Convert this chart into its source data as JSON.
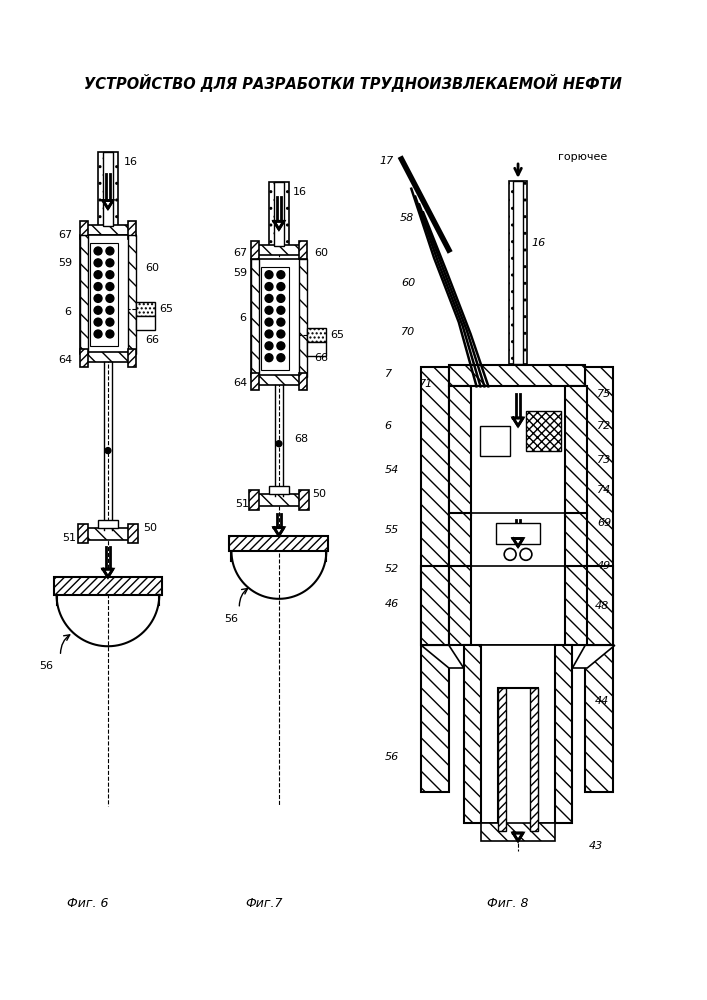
{
  "title": "УСТРОЙСТВО ДЛЯ РАЗРАБОТКИ ТРУДНОИЗВЛЕКАЕМОЙ НЕФТИ",
  "title_fontsize": 10.5,
  "background_color": "#ffffff",
  "fig6_label": "Фиг. 6",
  "fig7_label": "Фиг.7",
  "fig8_label": "Фиг. 8",
  "fig_label_fontsize": 9,
  "goruchee_label": "горючее"
}
